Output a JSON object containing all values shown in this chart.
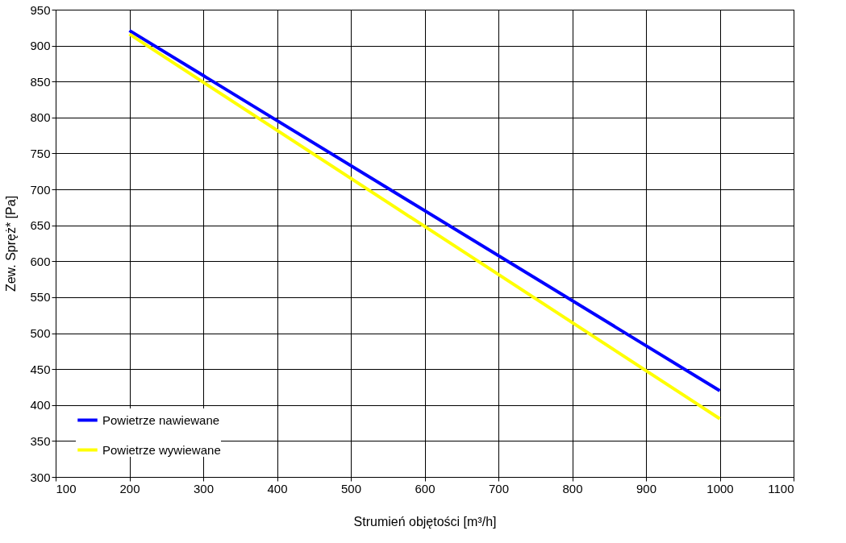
{
  "chart_data": {
    "type": "line",
    "xlabel": "Strumień objętości [m³/h]",
    "ylabel": "Zew. Spręż* [Pa]",
    "x": [
      200,
      1000
    ],
    "series": [
      {
        "name": "Powietrze nawiewane",
        "color": "#0000ff",
        "values": [
          921,
          420
        ]
      },
      {
        "name": "Powietrze wywiewane",
        "color": "#ffff00",
        "values": [
          916,
          381
        ]
      }
    ],
    "xlim": [
      100,
      1100
    ],
    "xticks": [
      100,
      200,
      300,
      400,
      500,
      600,
      700,
      800,
      900,
      1000,
      1100
    ],
    "ylim": [
      300,
      950
    ],
    "yticks": [
      300,
      350,
      400,
      450,
      500,
      550,
      600,
      650,
      700,
      750,
      800,
      850,
      900,
      950
    ],
    "grid": true,
    "legend": "bottom left",
    "marker": "none",
    "line_style": "solid"
  }
}
